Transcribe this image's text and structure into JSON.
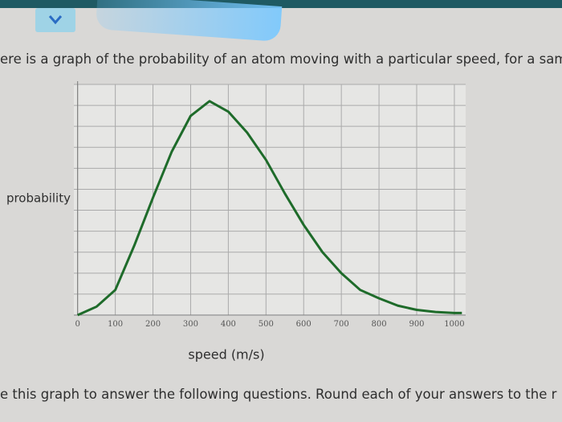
{
  "intro_text": "ere is a graph of the probability of an atom moving with a particular speed, for a sam",
  "footer_text": "e this graph to answer the following questions. Round each of your answers to the r",
  "chart_data": {
    "type": "line",
    "x_label": "speed (m/s)",
    "y_label": "probability",
    "x": [
      0,
      50,
      100,
      150,
      200,
      250,
      300,
      350,
      400,
      450,
      500,
      550,
      600,
      650,
      700,
      750,
      800,
      850,
      900,
      950,
      1000,
      1020
    ],
    "series": [
      {
        "name": "probability",
        "color": "#1e6b2a",
        "values": [
          0,
          0.4,
          1.2,
          3.3,
          5.6,
          7.8,
          9.5,
          10.2,
          9.7,
          8.7,
          7.4,
          5.8,
          4.3,
          3.0,
          2.0,
          1.2,
          0.8,
          0.45,
          0.25,
          0.15,
          0.1,
          0.1
        ]
      }
    ],
    "xlim": [
      -10,
      1030
    ],
    "ylim": [
      0,
      11
    ],
    "xticks": [
      0,
      100,
      200,
      300,
      400,
      500,
      600,
      700,
      800,
      900,
      1000
    ],
    "yticks": [
      0,
      1,
      2,
      3,
      4,
      5,
      6,
      7,
      8,
      9,
      10,
      11
    ],
    "grid": true
  }
}
